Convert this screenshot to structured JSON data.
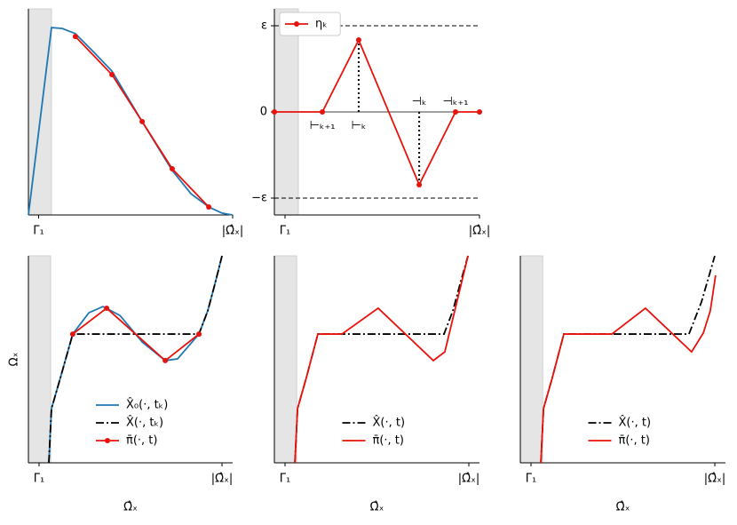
{
  "chart_data": [
    {
      "type": "line",
      "xlim": [
        0,
        1
      ],
      "ylim": [
        0,
        1
      ],
      "xticks": [
        {
          "value": 0.05,
          "label": "Γ₁"
        },
        {
          "value": 1,
          "label": "|Ω̂ₓ|"
        }
      ],
      "shade": [
        0,
        0.113
      ],
      "series": [
        {
          "color": "#1f77b4",
          "x": [
            0,
            0.113,
            0.165,
            0.23,
            0.317,
            0.409,
            0.557,
            0.704,
            0.796,
            0.883,
            0.948,
            1
          ],
          "values": [
            0,
            0.909,
            0.905,
            0.88,
            0.793,
            0.698,
            0.453,
            0.216,
            0.103,
            0.039,
            0.009,
            0
          ]
        },
        {
          "color": "#e8120c",
          "marker": true,
          "x": [
            0.23,
            0.409,
            0.557,
            0.704,
            0.883
          ],
          "values": [
            0.866,
            0.681,
            0.453,
            0.224,
            0.039
          ]
        }
      ]
    },
    {
      "type": "line",
      "xlim": [
        0,
        1
      ],
      "ylim": [
        -1.196,
        1.196
      ],
      "xticks": [
        {
          "value": 0.052,
          "label": "Γ₁"
        },
        {
          "value": 1,
          "label": "|Ω̂ₓ|"
        }
      ],
      "shade": [
        0,
        0.117
      ],
      "yticks": [
        {
          "value": 1,
          "label": "ε"
        },
        0,
        {
          "value": -1,
          "label": "−ε"
        }
      ],
      "grid": "dashed",
      "zero_line": true,
      "droplines": true,
      "legend": "upper left",
      "legend_frame": true,
      "series": [
        {
          "name": "ηₖ",
          "color": "#e8120c",
          "marker": true,
          "x": [
            0,
            0.234,
            0.411,
            0.706,
            0.883,
            1
          ],
          "values": [
            0,
            0,
            0.835,
            -0.845,
            0,
            0
          ]
        }
      ],
      "annotations": [
        {
          "text": "⊢ₖ₊₁",
          "x": 0.234,
          "y": -0.16
        },
        {
          "text": "⊢ₖ",
          "x": 0.411,
          "y": -0.16
        },
        {
          "text": "⊣ₖ",
          "x": 0.706,
          "y": 0.12
        },
        {
          "text": "⊣ₖ₊₁",
          "x": 0.883,
          "y": 0.12
        }
      ]
    },
    {
      "type": "line",
      "xlim": [
        0,
        1
      ],
      "ylim": [
        0,
        1
      ],
      "xlabel": "Ω̂ₓ",
      "ylabel": "Ωₓ",
      "xticks": [
        {
          "value": 0.052,
          "label": "Γ₁"
        },
        {
          "value": 0.948,
          "label": "|Ω̂ₓ|"
        }
      ],
      "shade": [
        0,
        0.109
      ],
      "legend": "lower center",
      "series": [
        {
          "name": "X̂₀(·, tₖ)",
          "color": "#1f77b4",
          "x": [
            0.1,
            0.113,
            0.157,
            0.217,
            0.296,
            0.365,
            0.448,
            0.557,
            0.67,
            0.73,
            0.835,
            0.878,
            0.913,
            0.948
          ],
          "values": [
            0,
            0.262,
            0.412,
            0.622,
            0.725,
            0.755,
            0.712,
            0.584,
            0.494,
            0.502,
            0.622,
            0.734,
            0.863,
            1
          ]
        },
        {
          "name": "X̂(·, tₖ)",
          "color": "#000000",
          "linestyle": "dashdot",
          "x": [
            0.1,
            0.113,
            0.157,
            0.217,
            0.835,
            0.878,
            0.913,
            0.948
          ],
          "values": [
            0,
            0.262,
            0.412,
            0.622,
            0.622,
            0.734,
            0.863,
            1
          ]
        },
        {
          "name": "π̄(·, t)",
          "color": "#e8120c",
          "marker": true,
          "x": [
            0.217,
            0.383,
            0.67,
            0.835
          ],
          "values": [
            0.622,
            0.747,
            0.494,
            0.622
          ]
        }
      ]
    },
    {
      "type": "line",
      "xlim": [
        0,
        1
      ],
      "ylim": [
        0,
        1
      ],
      "xlabel": "Ω̂ₓ",
      "xticks": [
        {
          "value": 0.052,
          "label": "Γ₁"
        },
        {
          "value": 0.948,
          "label": "|Ω̂ₓ|"
        }
      ],
      "shade": [
        0,
        0.109
      ],
      "legend": "lower center",
      "series": [
        {
          "name": "X̂(·, t)",
          "color": "#000000",
          "linestyle": "dashdot",
          "x": [
            0.1,
            0.113,
            0.156,
            0.212,
            0.827,
            0.87,
            0.905,
            0.944
          ],
          "values": [
            0,
            0.262,
            0.412,
            0.622,
            0.622,
            0.734,
            0.863,
            1
          ]
        },
        {
          "name": "π̄(·, t)",
          "color": "#e8120c",
          "x": [
            0.1,
            0.113,
            0.156,
            0.212,
            0.329,
            0.506,
            0.775,
            0.831,
            0.944
          ],
          "values": [
            0,
            0.262,
            0.412,
            0.622,
            0.622,
            0.747,
            0.494,
            0.536,
            1
          ]
        }
      ]
    },
    {
      "type": "line",
      "xlim": [
        0,
        1
      ],
      "ylim": [
        0,
        1
      ],
      "xlabel": "Ω̂ₓ",
      "xticks": [
        {
          "value": 0.052,
          "label": "Γ₁"
        },
        {
          "value": 0.948,
          "label": "|Ω̂ₓ|"
        }
      ],
      "shade": [
        0,
        0.109
      ],
      "legend": "lower center",
      "series": [
        {
          "name": "X̂(·, t)",
          "color": "#000000",
          "linestyle": "dashdot",
          "x": [
            0.1,
            0.113,
            0.156,
            0.212,
            0.822,
            0.883,
            0.948
          ],
          "values": [
            0,
            0.262,
            0.412,
            0.622,
            0.622,
            0.777,
            1
          ]
        },
        {
          "name": "π̄(·, t)",
          "color": "#e8120c",
          "x": [
            0.1,
            0.113,
            0.156,
            0.212,
            0.446,
            0.61,
            0.835,
            0.892,
            0.926,
            0.952
          ],
          "values": [
            0,
            0.262,
            0.412,
            0.622,
            0.622,
            0.747,
            0.536,
            0.627,
            0.734,
            0.906
          ]
        }
      ]
    }
  ]
}
